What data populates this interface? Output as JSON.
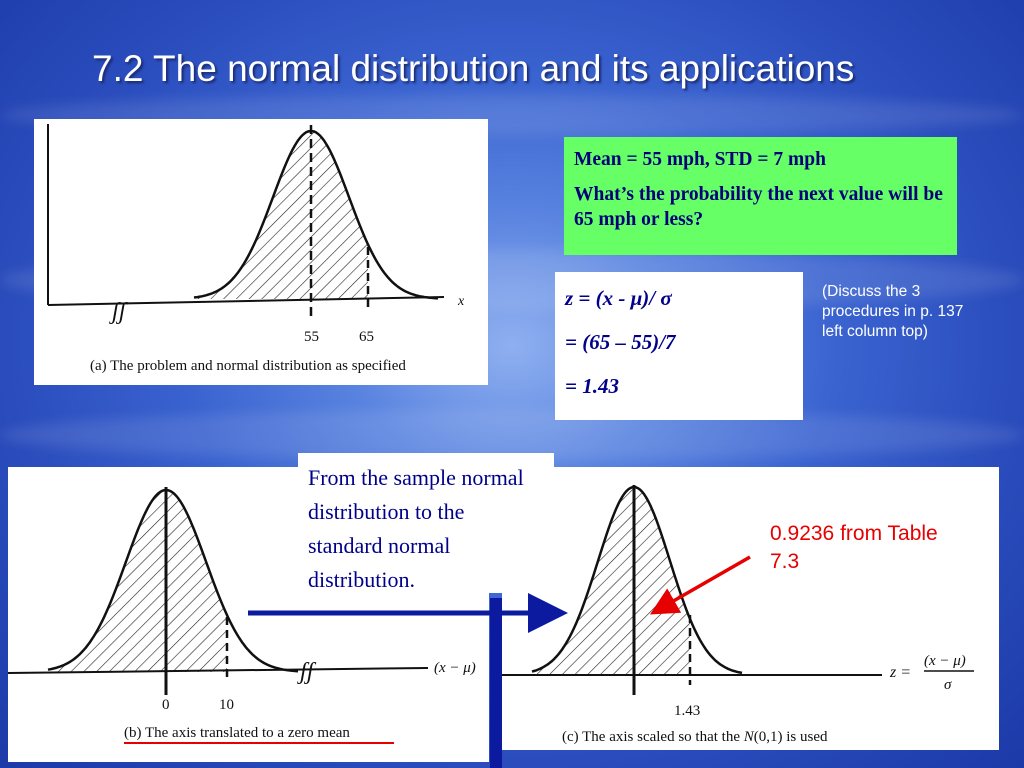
{
  "slide": {
    "title": "7.2 The normal distribution and its applications"
  },
  "problem_box": {
    "line1": "Mean = 55 mph, STD = 7 mph",
    "line2": "What’s the probability the next value will be 65 mph or less?"
  },
  "formula": {
    "line1": "z = (x - μ)/ σ",
    "line2": "= (65 – 55)/7",
    "line3": "= 1.43"
  },
  "discuss_note": "(Discuss the 3 procedures in p. 137 left column top)",
  "sample_note": "From the sample normal distribution to the standard normal distribution.",
  "table_note": "0.9236 from Table 7.3",
  "figure_a": {
    "caption": "(a) The problem and normal distribution as specified",
    "tick_mean": "55",
    "tick_value": "65",
    "axis_label": "x",
    "break_mark": "ʃʃ"
  },
  "figure_b": {
    "caption": "(b) The axis translated to a zero mean",
    "tick_mean": "0",
    "tick_value": "10",
    "axis_label": "(x − μ)",
    "break_mark": "ʃʃ"
  },
  "figure_c": {
    "caption_pre": "(c) The axis scaled so that the ",
    "caption_n": "N",
    "caption_post": "(0,1) is used",
    "tick_value": "1.43",
    "z_label": "z =",
    "frac_num": "(x − μ)",
    "frac_den": "σ"
  },
  "colors": {
    "background": "#3a63d0",
    "title_text": "#ffffff",
    "green_box": "#66ff66",
    "dark_navy_text": "#00008b",
    "arrow_blue": "#0b1a9e",
    "red": "#e60000"
  }
}
